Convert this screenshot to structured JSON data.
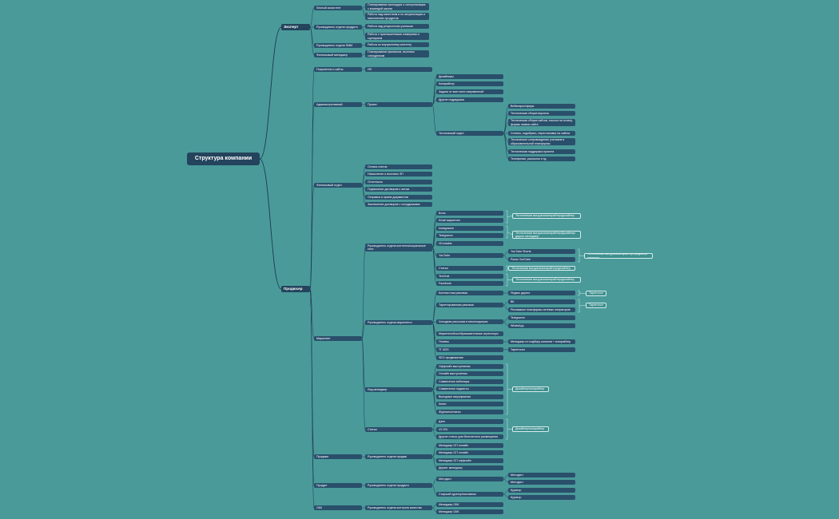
{
  "root": "Структура компании",
  "nodes": [
    {
      "id": "expert",
      "p": "root",
      "t": "Эксперт",
      "d": 1
    },
    {
      "id": "producer",
      "p": "root",
      "t": "Продюсер",
      "d": 1
    },
    {
      "id": "lichasist",
      "p": "expert",
      "t": "Личный ассистент"
    },
    {
      "id": "lichasist1",
      "p": "lichasist",
      "t": "Планирование календаря и синхронизация с командой школы"
    },
    {
      "id": "lichasist2",
      "p": "lichasist",
      "t": "Работа над качеством и по актуализации и наполнению продуктов"
    },
    {
      "id": "rukprod",
      "p": "expert",
      "t": "Руководитель отдела продукта"
    },
    {
      "id": "rukprod1",
      "p": "rukprod",
      "t": "Работа над результатом учеников"
    },
    {
      "id": "rukprod2",
      "p": "rukprod",
      "t": "Работа с приглашенными спикерами и сценарием"
    },
    {
      "id": "ruksmm",
      "p": "expert",
      "t": "Руководитель отдела SMM"
    },
    {
      "id": "ruksmm1",
      "p": "ruksmm",
      "t": "Работа по внутреннему контенту"
    },
    {
      "id": "finman",
      "p": "expert",
      "t": "Финансовый менеджер"
    },
    {
      "id": "finman1",
      "p": "finman",
      "t": "Планирование финансов, выплаты сотрудникам"
    },
    {
      "id": "pokupki",
      "p": "producer",
      "t": "Покупатели и сайты"
    },
    {
      "id": "pokupki1",
      "p": "pokupki",
      "t": "ИП"
    },
    {
      "id": "admin",
      "p": "producer",
      "t": "Административный"
    },
    {
      "id": "proekt",
      "p": "admin",
      "t": "Проект"
    },
    {
      "id": "designery",
      "p": "proekt",
      "t": "Дизайнеры"
    },
    {
      "id": "copyrighter",
      "p": "proekt",
      "t": "Копирайтер"
    },
    {
      "id": "zadachi",
      "p": "proekt",
      "t": "Задачи от всех всех направлений"
    },
    {
      "id": "drugie",
      "p": "proekt",
      "t": "Другие подрядчики"
    },
    {
      "id": "teh",
      "p": "proekt",
      "t": "Технический отдел"
    },
    {
      "id": "teh1",
      "p": "teh",
      "t": "Вебинары/эфиры"
    },
    {
      "id": "teh2",
      "p": "teh",
      "t": "Техническая сборка воронок"
    },
    {
      "id": "teh3",
      "p": "teh",
      "t": "Техническая сборка сайтов, ссылок на оплату, формы заявок сайта"
    },
    {
      "id": "teh4",
      "p": "teh",
      "t": "Сплиты, подобрать, перестановки на сайтах"
    },
    {
      "id": "teh5",
      "p": "teh",
      "t": "Техническое сопровождение учеников в образовательной платформы"
    },
    {
      "id": "teh6",
      "p": "teh",
      "t": "Техническая поддержка проекта"
    },
    {
      "id": "teh7",
      "p": "teh",
      "t": "Телефония, рассылки и тд."
    },
    {
      "id": "fin",
      "p": "producer",
      "t": "Финансовый отдел"
    },
    {
      "id": "fin1",
      "p": "fin",
      "t": "Оплата счетов"
    },
    {
      "id": "fin2",
      "p": "fin",
      "t": "Начисление и выплаты ЗП"
    },
    {
      "id": "fin3",
      "p": "fin",
      "t": "Отчетность"
    },
    {
      "id": "fin4",
      "p": "fin",
      "t": "Подписание договоров с актом"
    },
    {
      "id": "fin5",
      "p": "fin",
      "t": "Отправка и прием документов"
    },
    {
      "id": "fin6",
      "p": "fin",
      "t": "Заключение договоров с сотрудниками"
    },
    {
      "id": "market",
      "p": "producer",
      "t": "Маркетинг"
    },
    {
      "id": "rukkont",
      "p": "market",
      "t": "Руководитель отдела контента/социальные сети"
    },
    {
      "id": "k1",
      "p": "rukkont",
      "t": "Боты"
    },
    {
      "id": "k2",
      "p": "rukkont",
      "t": "Email маркетинг"
    },
    {
      "id": "k3",
      "p": "rukkont",
      "t": "Instagramm"
    },
    {
      "id": "k4",
      "p": "rukkont",
      "t": "Telegramm"
    },
    {
      "id": "k5",
      "p": "rukkont",
      "t": "VKontakte"
    },
    {
      "id": "k6",
      "p": "rukkont",
      "t": "YouTube"
    },
    {
      "id": "k6a",
      "p": "k6",
      "t": "YouTube Shorts"
    },
    {
      "id": "k6b",
      "p": "k6",
      "t": "Ролик YouTube"
    },
    {
      "id": "k7",
      "p": "rukkont",
      "t": "Статьи"
    },
    {
      "id": "k8",
      "p": "rukkont",
      "t": "TenChat"
    },
    {
      "id": "k9",
      "p": "rukkont",
      "t": "Facebook"
    },
    {
      "id": "rukmark",
      "p": "market",
      "t": "Руководитель отдела маркетинга"
    },
    {
      "id": "m1",
      "p": "rukmark",
      "t": "Контекстная реклама"
    },
    {
      "id": "m1a",
      "p": "m1",
      "t": "Яндекс директ"
    },
    {
      "id": "m2",
      "p": "rukmark",
      "t": "Таргетированная реклама"
    },
    {
      "id": "m2a",
      "p": "m2",
      "t": "ВК"
    },
    {
      "id": "m2b",
      "p": "m2",
      "t": "Рекламные платформы сетевых операторов"
    },
    {
      "id": "m3",
      "p": "rukmark",
      "t": "Холодная рассылка в мессенджерах"
    },
    {
      "id": "m3a",
      "p": "m3",
      "t": "Telegramm"
    },
    {
      "id": "m3b",
      "p": "m3",
      "t": "WhatsApp"
    },
    {
      "id": "m4",
      "p": "rukmark",
      "t": "Маркетплейсы/образовательные агрегаторы"
    },
    {
      "id": "m5",
      "p": "rukmark",
      "t": "Посевы"
    },
    {
      "id": "m5a",
      "p": "m5",
      "t": "Менеджер по подбору каналов + копирайтер"
    },
    {
      "id": "m6",
      "p": "rukmark",
      "t": "ТГ ADS"
    },
    {
      "id": "m6a",
      "p": "m6",
      "t": "Таргетолог"
    },
    {
      "id": "m7",
      "p": "rukmark",
      "t": "SEO продвижение"
    },
    {
      "id": "lid",
      "p": "market",
      "t": "Лид менеджер"
    },
    {
      "id": "l1",
      "p": "lid",
      "t": "Оффлайн выступления"
    },
    {
      "id": "l2",
      "p": "lid",
      "t": "Онлайн выступления"
    },
    {
      "id": "l3",
      "p": "lid",
      "t": "Совместные вэбинары"
    },
    {
      "id": "l4",
      "p": "lid",
      "t": "Совместные подкасты"
    },
    {
      "id": "l5",
      "p": "lid",
      "t": "Выездные мероприятия"
    },
    {
      "id": "l6",
      "p": "lid",
      "t": "Книги"
    },
    {
      "id": "l7",
      "p": "lid",
      "t": "Журналы/статьи"
    },
    {
      "id": "stat",
      "p": "market",
      "t": "Статьи"
    },
    {
      "id": "s1",
      "p": "stat",
      "t": "Дзен"
    },
    {
      "id": "s2",
      "p": "stat",
      "t": "VC.RU"
    },
    {
      "id": "s3",
      "p": "stat",
      "t": "Другие статьи для бесплатного размещения"
    },
    {
      "id": "prodazhi",
      "p": "producer",
      "t": "Продажи"
    },
    {
      "id": "rukpr",
      "p": "prodazhi",
      "t": "Руководитель отдела продаж"
    },
    {
      "id": "p1",
      "p": "rukpr",
      "t": "Менеджер ОП онлайн"
    },
    {
      "id": "p2",
      "p": "rukpr",
      "t": "Менеджер ОП онлайн"
    },
    {
      "id": "p3",
      "p": "rukpr",
      "t": "Менеджер ОП оффлайн"
    },
    {
      "id": "p4",
      "p": "rukpr",
      "t": "Директ менеджер"
    },
    {
      "id": "produkt",
      "p": "producer",
      "t": "Продукт"
    },
    {
      "id": "rukprd",
      "p": "produkt",
      "t": "Руководитель отдела продукта"
    },
    {
      "id": "pr1",
      "p": "rukprd",
      "t": "Методист"
    },
    {
      "id": "pr1a",
      "p": "pr1",
      "t": "Методист"
    },
    {
      "id": "pr1b",
      "p": "pr1",
      "t": "Методист"
    },
    {
      "id": "pr2",
      "p": "rukprd",
      "t": "Старший куратор/наставник"
    },
    {
      "id": "pr2a",
      "p": "pr2",
      "t": "Куратор"
    },
    {
      "id": "pr2b",
      "p": "pr2",
      "t": "Куратор"
    },
    {
      "id": "okk",
      "p": "producer",
      "t": "ОКК"
    },
    {
      "id": "rukokk",
      "p": "okk",
      "t": "Руководитель отдела контроля качества"
    },
    {
      "id": "o1",
      "p": "rukokk",
      "t": "Менеджер ОКК"
    },
    {
      "id": "o2",
      "p": "rukokk",
      "t": "Менеджер ОКК"
    }
  ],
  "notes": [
    {
      "id": "n1",
      "t": "Техническая выгрузка/копирайтер/дизайнер",
      "for": [
        "k1",
        "k2"
      ]
    },
    {
      "id": "n2",
      "t": "Техническая выгрузка/копирайтер/Дизайнер/директ менеджер",
      "for": [
        "k3",
        "k4"
      ]
    },
    {
      "id": "n3",
      "t": "Техническая выгрузка/копирайтер/Дизайнер",
      "for": [
        "k6"
      ]
    },
    {
      "id": "n3b",
      "t": "Техническая выгрузка/копирайтер/продюсер/редактор",
      "for": [
        "k6a",
        "k6b"
      ]
    },
    {
      "id": "n4",
      "t": "Техническая выгрузка/копирайтер/дизайнер",
      "for": [
        "k7"
      ]
    },
    {
      "id": "n5",
      "t": "Техническая выгрузка/копирайтер/дизайнер",
      "for": [
        "k8",
        "k9"
      ]
    },
    {
      "id": "n6",
      "t": "Таргетолог",
      "for": [
        "m1a"
      ]
    },
    {
      "id": "n7",
      "t": "Таргетолог",
      "for": [
        "m2a",
        "m2b"
      ]
    },
    {
      "id": "n8",
      "t": "Дизайнер/копирайтер",
      "for": [
        "l1",
        "l7"
      ]
    },
    {
      "id": "n9",
      "t": "Дизайнер/копирайтер",
      "for": [
        "s1",
        "s3"
      ]
    }
  ]
}
